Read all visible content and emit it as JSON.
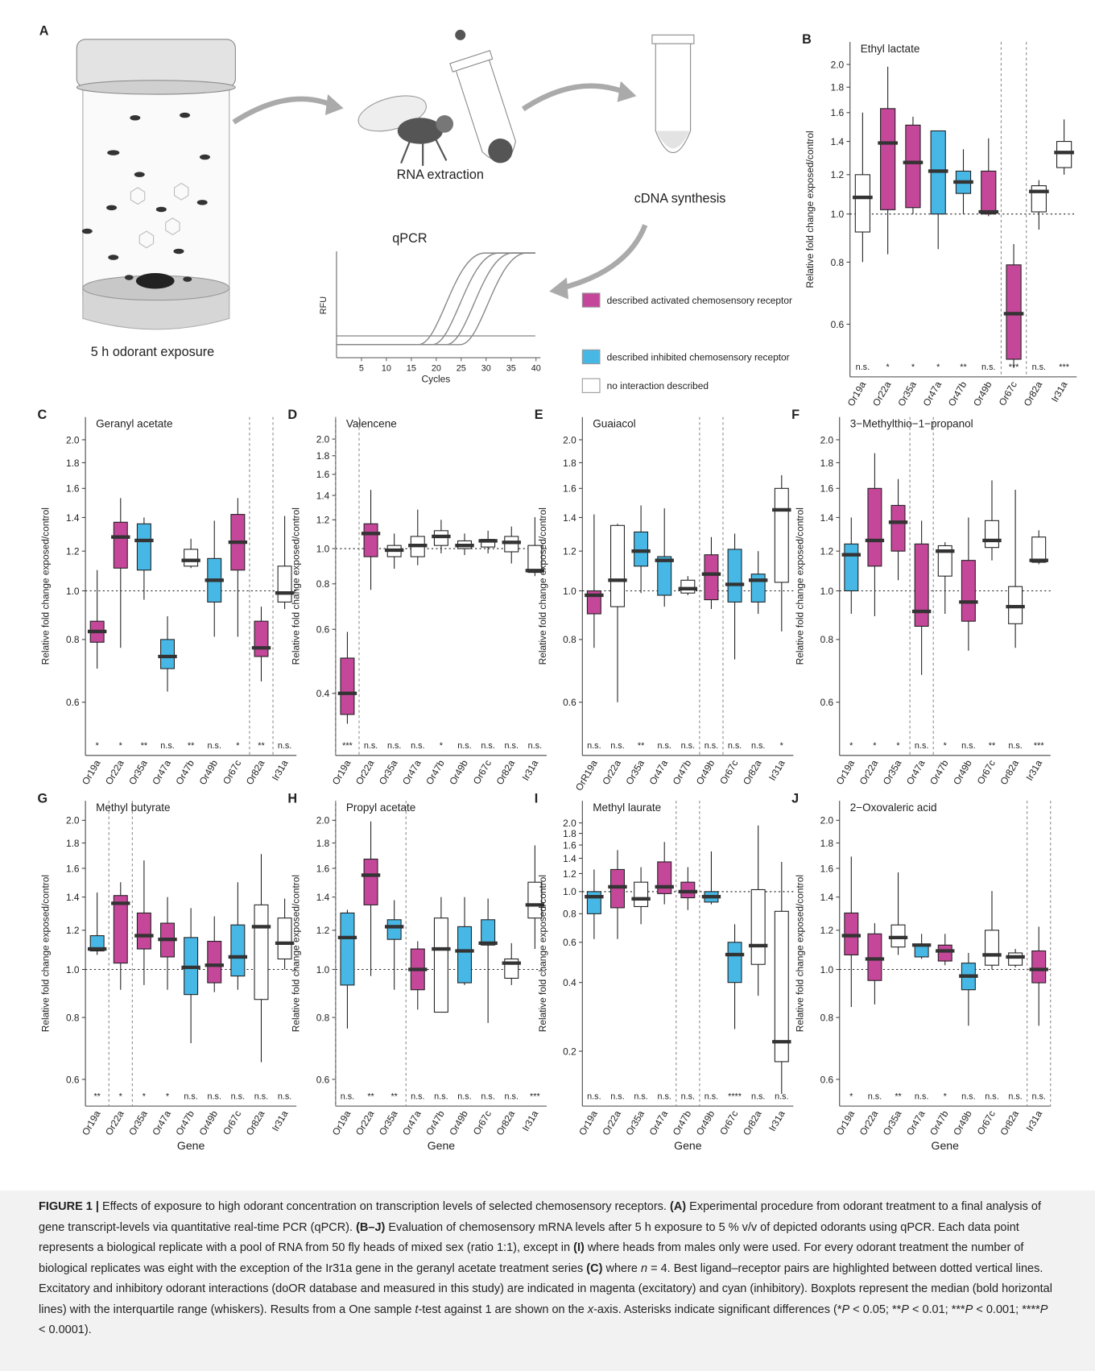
{
  "diagram": {
    "label": "A",
    "steps": [
      "5 h odorant exposure",
      "RNA extraction",
      "cDNA synthesis",
      "qPCR"
    ],
    "qpcr": {
      "ylabel": "RFU",
      "xlabel": "Cycles",
      "xticks": [
        5,
        10,
        15,
        20,
        25,
        30,
        35,
        40
      ]
    },
    "legend": [
      {
        "label": "described activated chemosensory receptor",
        "color": "#c4479a"
      },
      {
        "label": "described inhibited chemosensory receptor",
        "color": "#47b8e6"
      },
      {
        "label": "no interaction described",
        "color": "#ffffff"
      }
    ]
  },
  "chart_data": [
    {
      "type": "box",
      "panel": "B",
      "title": "Ethyl lactate",
      "ylabel": "Relative fold change exposed/control",
      "categories": [
        "Or19a",
        "Or22a",
        "Or35a",
        "Or47a",
        "Or47b",
        "Or49b",
        "Or67c",
        "Or82a",
        "Ir31a"
      ],
      "colors": [
        "#ffffff",
        "#c4479a",
        "#c4479a",
        "#47b8e6",
        "#47b8e6",
        "#c4479a",
        "#c4479a",
        "#ffffff",
        "#ffffff"
      ],
      "low": [
        0.8,
        0.83,
        1.0,
        0.85,
        1.0,
        0.99,
        0.49,
        0.93,
        1.2
      ],
      "q1": [
        0.92,
        1.02,
        1.03,
        1.0,
        1.1,
        1.0,
        0.51,
        1.01,
        1.24
      ],
      "median": [
        1.08,
        1.39,
        1.27,
        1.22,
        1.16,
        1.01,
        0.63,
        1.11,
        1.33
      ],
      "q3": [
        1.2,
        1.63,
        1.51,
        1.47,
        1.22,
        1.22,
        0.79,
        1.14,
        1.4
      ],
      "high": [
        1.6,
        1.98,
        1.57,
        1.47,
        1.35,
        1.42,
        0.87,
        1.17,
        1.55
      ],
      "significance": [
        "n.s.",
        "*",
        "*",
        "*",
        "**",
        "n.s.",
        "***",
        "n.s.",
        "***"
      ],
      "highlight": [
        "Or67c"
      ],
      "reference_line": 1,
      "log": true,
      "ylim": [
        0.47,
        2.22
      ],
      "yticks": [
        0.6,
        0.8,
        {
          "value": 1,
          "label": "1.0"
        },
        1.2,
        1.4,
        1.6,
        1.8,
        {
          "value": 2,
          "label": "2.0"
        }
      ]
    },
    {
      "type": "box",
      "panel": "C",
      "title": "Geranyl acetate",
      "ylabel": "Relative fold change exposed/control",
      "categories": [
        "Or19a",
        "Or22a",
        "Or35a",
        "Or47a",
        "Or47b",
        "Or49b",
        "Or67c",
        "Or82a",
        "Ir31a"
      ],
      "colors": [
        "#c4479a",
        "#c4479a",
        "#47b8e6",
        "#47b8e6",
        "#ffffff",
        "#47b8e6",
        "#c4479a",
        "#c4479a",
        "#ffffff"
      ],
      "low": [
        0.7,
        0.77,
        0.96,
        0.63,
        1.11,
        0.81,
        0.81,
        0.66,
        0.92
      ],
      "q1": [
        0.79,
        1.11,
        1.1,
        0.7,
        1.12,
        0.95,
        1.1,
        0.74,
        0.95
      ],
      "median": [
        0.83,
        1.28,
        1.26,
        0.74,
        1.15,
        1.05,
        1.25,
        0.77,
        0.99
      ],
      "q3": [
        0.87,
        1.37,
        1.36,
        0.8,
        1.21,
        1.16,
        1.42,
        0.87,
        1.12
      ],
      "high": [
        1.1,
        1.53,
        1.4,
        0.89,
        1.27,
        1.38,
        1.53,
        0.93,
        1.41
      ],
      "significance": [
        "*",
        "*",
        "**",
        "n.s.",
        "**",
        "n.s.",
        "*",
        "**",
        "n.s."
      ],
      "highlight": [
        "Or82a"
      ],
      "reference_line": 1,
      "log": true,
      "ylim": [
        0.47,
        2.22
      ],
      "yticks": [
        0.6,
        0.8,
        {
          "value": 1,
          "label": "1.0"
        },
        1.2,
        1.4,
        1.6,
        1.8,
        {
          "value": 2,
          "label": "2.0"
        }
      ]
    },
    {
      "type": "box",
      "panel": "D",
      "title": "Valencene",
      "ylabel": "Relative fold change exposed/control",
      "categories": [
        "Or19a",
        "Or22a",
        "Or35a",
        "Or47a",
        "Or47b",
        "Or49b",
        "Or67c",
        "Or82a",
        "Ir31a"
      ],
      "colors": [
        "#c4479a",
        "#c4479a",
        "#ffffff",
        "#ffffff",
        "#ffffff",
        "#ffffff",
        "#ffffff",
        "#ffffff",
        "#ffffff"
      ],
      "low": [
        0.33,
        0.77,
        0.88,
        0.9,
        0.97,
        0.96,
        0.97,
        0.91,
        0.84
      ],
      "q1": [
        0.35,
        0.95,
        0.95,
        0.95,
        1.02,
        1.0,
        1.01,
        0.98,
        0.86
      ],
      "median": [
        0.4,
        1.1,
        0.99,
        1.02,
        1.08,
        1.02,
        1.05,
        1.04,
        0.87
      ],
      "q3": [
        0.5,
        1.17,
        1.02,
        1.08,
        1.12,
        1.05,
        1.06,
        1.08,
        1.02
      ],
      "high": [
        0.59,
        1.45,
        1.1,
        1.28,
        1.2,
        1.1,
        1.12,
        1.15,
        1.22
      ],
      "significance": [
        "***",
        "n.s.",
        "n.s.",
        "n.s.",
        "*",
        "n.s.",
        "n.s.",
        "n.s.",
        "n.s."
      ],
      "highlight": [
        "Or19a"
      ],
      "reference_line": 1,
      "log": true,
      "ylim": [
        0.27,
        2.3
      ],
      "yticks": [
        0.4,
        0.6,
        0.8,
        {
          "value": 1,
          "label": "1.0"
        },
        1.2,
        1.4,
        1.6,
        1.8,
        {
          "value": 2,
          "label": "2.0"
        }
      ]
    },
    {
      "type": "box",
      "panel": "E",
      "title": "Guaiacol",
      "ylabel": "Relative fold change exposed/control",
      "categories": [
        "OrR19a",
        "Or22a",
        "Or35a",
        "Or47a",
        "Or47b",
        "Or49b",
        "Or67c",
        "Or82a",
        "Ir31a"
      ],
      "colors": [
        "#c4479a",
        "#ffffff",
        "#47b8e6",
        "#47b8e6",
        "#ffffff",
        "#c4479a",
        "#47b8e6",
        "#47b8e6",
        "#ffffff"
      ],
      "low": [
        0.77,
        0.6,
        0.99,
        0.93,
        0.98,
        0.92,
        0.73,
        0.9,
        0.83
      ],
      "q1": [
        0.9,
        0.93,
        1.12,
        0.98,
        0.99,
        0.96,
        0.95,
        0.95,
        1.04
      ],
      "median": [
        0.98,
        1.05,
        1.2,
        1.15,
        1.01,
        1.08,
        1.03,
        1.05,
        1.45
      ],
      "q3": [
        1.0,
        1.35,
        1.31,
        1.17,
        1.05,
        1.18,
        1.21,
        1.08,
        1.6
      ],
      "high": [
        1.42,
        1.36,
        1.48,
        1.46,
        1.07,
        1.28,
        1.3,
        1.2,
        1.7
      ],
      "significance": [
        "n.s.",
        "n.s.",
        "**",
        "n.s.",
        "n.s.",
        "n.s.",
        "n.s.",
        "n.s.",
        "*"
      ],
      "highlight": [
        "Or49b"
      ],
      "reference_line": 1,
      "log": true,
      "ylim": [
        0.47,
        2.22
      ],
      "yticks": [
        0.6,
        0.8,
        {
          "value": 1,
          "label": "1.0"
        },
        1.2,
        1.4,
        1.6,
        1.8,
        {
          "value": 2,
          "label": "2.0"
        }
      ]
    },
    {
      "type": "box",
      "panel": "F",
      "title": "3−Methylthio−1−propanol",
      "ylabel": "Relative fold change exposed/control",
      "categories": [
        "Or19a",
        "Or22a",
        "Or35a",
        "Or47a",
        "Or47b",
        "Or49b",
        "Or67c",
        "Or82a",
        "Ir31a"
      ],
      "colors": [
        "#47b8e6",
        "#c4479a",
        "#c4479a",
        "#c4479a",
        "#ffffff",
        "#c4479a",
        "#ffffff",
        "#ffffff",
        "#ffffff"
      ],
      "low": [
        0.9,
        0.89,
        1.05,
        0.68,
        0.9,
        0.76,
        1.15,
        0.77,
        1.13
      ],
      "q1": [
        1.0,
        1.12,
        1.2,
        0.85,
        1.07,
        0.87,
        1.22,
        0.86,
        1.14
      ],
      "median": [
        1.18,
        1.26,
        1.37,
        0.91,
        1.2,
        0.95,
        1.26,
        0.93,
        1.15
      ],
      "q3": [
        1.24,
        1.6,
        1.48,
        1.24,
        1.23,
        1.15,
        1.38,
        1.02,
        1.28
      ],
      "high": [
        1.4,
        1.88,
        1.67,
        1.38,
        1.25,
        1.4,
        1.66,
        1.59,
        1.32
      ],
      "significance": [
        "*",
        "*",
        "*",
        "n.s.",
        "*",
        "n.s.",
        "**",
        "n.s.",
        "***"
      ],
      "highlight": [
        "Or47a"
      ],
      "reference_line": 1,
      "log": true,
      "ylim": [
        0.47,
        2.22
      ],
      "yticks": [
        0.6,
        0.8,
        {
          "value": 1,
          "label": "1.0"
        },
        1.2,
        1.4,
        1.6,
        1.8,
        {
          "value": 2,
          "label": "2.0"
        }
      ]
    },
    {
      "type": "box",
      "panel": "G",
      "title": "Methyl butyrate",
      "ylabel": "Relative fold change exposed/control",
      "xlabel": "Gene",
      "categories": [
        "Or19a",
        "Or22a",
        "Or35a",
        "Or47a",
        "Or47b",
        "Or49b",
        "Or67c",
        "Or82a",
        "Ir31a"
      ],
      "colors": [
        "#47b8e6",
        "#c4479a",
        "#c4479a",
        "#c4479a",
        "#47b8e6",
        "#c4479a",
        "#47b8e6",
        "#ffffff",
        "#ffffff"
      ],
      "low": [
        1.07,
        0.91,
        0.93,
        0.91,
        0.71,
        0.9,
        0.91,
        0.65,
        1.0
      ],
      "q1": [
        1.09,
        1.03,
        1.1,
        1.06,
        0.89,
        0.94,
        0.97,
        0.87,
        1.05
      ],
      "median": [
        1.1,
        1.36,
        1.17,
        1.15,
        1.01,
        1.02,
        1.06,
        1.22,
        1.13
      ],
      "q3": [
        1.17,
        1.41,
        1.3,
        1.24,
        1.16,
        1.14,
        1.23,
        1.35,
        1.27
      ],
      "high": [
        1.43,
        1.5,
        1.66,
        1.4,
        1.33,
        1.28,
        1.5,
        1.71,
        1.39
      ],
      "significance": [
        "**",
        "*",
        "*",
        "*",
        "n.s.",
        "n.s.",
        "n.s.",
        "n.s.",
        "n.s."
      ],
      "highlight": [
        "Or22a"
      ],
      "reference_line": 1,
      "log": true,
      "ylim": [
        0.53,
        2.19
      ],
      "yticks": [
        0.6,
        0.8,
        {
          "value": 1,
          "label": "1.0"
        },
        1.2,
        1.4,
        1.6,
        1.8,
        {
          "value": 2,
          "label": "2.0"
        }
      ]
    },
    {
      "type": "box",
      "panel": "H",
      "title": "Propyl acetate",
      "ylabel": "Relative fold change exposed/control",
      "xlabel": "Gene",
      "categories": [
        "Or19a",
        "Or22a",
        "Or35a",
        "Or47a",
        "Or47b",
        "Or49b",
        "Or67c",
        "Or82a",
        "Ir31a"
      ],
      "colors": [
        "#47b8e6",
        "#c4479a",
        "#47b8e6",
        "#c4479a",
        "#ffffff",
        "#47b8e6",
        "#47b8e6",
        "#ffffff",
        "#ffffff"
      ],
      "low": [
        0.76,
        0.97,
        0.91,
        0.83,
        0.82,
        0.93,
        0.78,
        0.93,
        1.1
      ],
      "q1": [
        0.93,
        1.35,
        1.15,
        0.91,
        0.82,
        0.94,
        1.12,
        0.96,
        1.27
      ],
      "median": [
        1.16,
        1.55,
        1.22,
        1.0,
        1.1,
        1.09,
        1.13,
        1.03,
        1.35
      ],
      "q3": [
        1.3,
        1.67,
        1.26,
        1.1,
        1.27,
        1.22,
        1.26,
        1.05,
        1.5
      ],
      "high": [
        1.32,
        1.99,
        1.38,
        1.14,
        1.4,
        1.4,
        1.39,
        1.13,
        1.78
      ],
      "significance": [
        "n.s.",
        "**",
        "**",
        "n.s.",
        "n.s.",
        "n.s.",
        "n.s.",
        "n.s.",
        "***"
      ],
      "highlight": [
        "Or19a",
        "Or22a",
        "Or35a"
      ],
      "reference_line": 1,
      "log": true,
      "ylim": [
        0.53,
        2.19
      ],
      "yticks": [
        0.6,
        0.8,
        {
          "value": 1,
          "label": "1.0"
        },
        1.2,
        1.4,
        1.6,
        1.8,
        {
          "value": 2,
          "label": "2.0"
        }
      ]
    },
    {
      "type": "box",
      "panel": "I",
      "title": "Methyl laurate",
      "ylabel": "Relative fold change exposed/control",
      "xlabel": "Gene",
      "categories": [
        "Or19a",
        "Or22a",
        "Or35a",
        "Or47a",
        "Or47b",
        "Or49b",
        "Or67c",
        "Or82a",
        "Ir31a"
      ],
      "colors": [
        "#47b8e6",
        "#c4479a",
        "#ffffff",
        "#c4479a",
        "#c4479a",
        "#47b8e6",
        "#47b8e6",
        "#ffffff",
        "#ffffff"
      ],
      "low": [
        0.62,
        0.62,
        0.72,
        0.88,
        0.83,
        0.88,
        0.25,
        0.35,
        0.13
      ],
      "q1": [
        0.8,
        0.85,
        0.86,
        0.98,
        0.94,
        0.9,
        0.4,
        0.48,
        0.18
      ],
      "median": [
        0.95,
        1.05,
        0.93,
        1.05,
        1.0,
        0.95,
        0.53,
        0.58,
        0.22
      ],
      "q3": [
        1.0,
        1.25,
        1.1,
        1.35,
        1.1,
        1.0,
        0.6,
        1.02,
        0.82
      ],
      "high": [
        1.25,
        1.52,
        1.28,
        1.65,
        1.28,
        1.5,
        0.72,
        1.95,
        1.35
      ],
      "significance": [
        "n.s.",
        "n.s.",
        "n.s.",
        "n.s.",
        "n.s.",
        "n.s.",
        "****",
        "n.s.",
        "n.s."
      ],
      "highlight": [
        "Or47b"
      ],
      "reference_line": 1,
      "log": true,
      "ylim": [
        0.115,
        2.5
      ],
      "yticks": [
        0.2,
        0.4,
        0.6,
        0.8,
        {
          "value": 1,
          "label": "1.0"
        },
        1.2,
        1.4,
        1.6,
        1.8,
        {
          "value": 2,
          "label": "2.0"
        }
      ]
    },
    {
      "type": "box",
      "panel": "J",
      "title": "2−Oxovaleric acid",
      "ylabel": "Relative fold change exposed/control",
      "xlabel": "Gene",
      "categories": [
        "Or19a",
        "Or22a",
        "Or35a",
        "Or47a",
        "Or47b",
        "Or49b",
        "Or67c",
        "Or82a",
        "Ir31a"
      ],
      "colors": [
        "#c4479a",
        "#c4479a",
        "#ffffff",
        "#47b8e6",
        "#c4479a",
        "#47b8e6",
        "#ffffff",
        "#ffffff",
        "#c4479a"
      ],
      "low": [
        0.84,
        0.85,
        1.07,
        1.05,
        1.02,
        0.77,
        1.0,
        1.01,
        0.77
      ],
      "q1": [
        1.07,
        0.95,
        1.11,
        1.06,
        1.04,
        0.91,
        1.02,
        1.02,
        0.94
      ],
      "median": [
        1.17,
        1.05,
        1.16,
        1.12,
        1.09,
        0.97,
        1.07,
        1.06,
        1.0
      ],
      "q3": [
        1.3,
        1.18,
        1.23,
        1.12,
        1.12,
        1.03,
        1.2,
        1.08,
        1.09
      ],
      "high": [
        1.69,
        1.24,
        1.57,
        1.18,
        1.18,
        1.08,
        1.44,
        1.1,
        1.22
      ],
      "significance": [
        "*",
        "n.s.",
        "**",
        "n.s.",
        "*",
        "n.s.",
        "n.s.",
        "n.s.",
        "n.s."
      ],
      "highlight": [
        "Ir31a"
      ],
      "reference_line": 1,
      "log": true,
      "ylim": [
        0.53,
        2.19
      ],
      "yticks": [
        0.6,
        0.8,
        {
          "value": 1,
          "label": "1.0"
        },
        1.2,
        1.4,
        1.6,
        1.8,
        {
          "value": 2,
          "label": "2.0"
        }
      ]
    }
  ],
  "caption": {
    "parts": [
      {
        "text": "FIGURE 1 |",
        "style": "bold"
      },
      {
        "text": " Effects of exposure to high odorant concentration on transcription levels of selected chemosensory receptors. "
      },
      {
        "text": "(A)",
        "style": "bold"
      },
      {
        "text": " Experimental procedure from odorant treatment to a final analysis of gene transcript-levels via quantitative real-time PCR (qPCR). "
      },
      {
        "text": "(B–J)",
        "style": "bold"
      },
      {
        "text": " Evaluation of chemosensory mRNA levels after 5 h exposure to 5 % v/v of depicted odorants using qPCR. Each data point represents a biological replicate with a pool of RNA from 50 fly heads of mixed sex (ratio 1:1), except in "
      },
      {
        "text": "(I)",
        "style": "bold"
      },
      {
        "text": " where heads from males only were used. For every odorant treatment the number of biological replicates was eight with the exception of the Ir31a gene in the geranyl acetate treatment series "
      },
      {
        "text": "(C)",
        "style": "bold"
      },
      {
        "text": " where "
      },
      {
        "text": "n",
        "style": "italic"
      },
      {
        "text": " = 4. Best ligand–receptor pairs are highlighted between dotted vertical lines. Excitatory and inhibitory odorant interactions (doOR database and measured in this study) are indicated in magenta (excitatory) and cyan (inhibitory). Boxplots represent the median (bold horizontal lines) with the interquartile range (whiskers). Results from a One sample "
      },
      {
        "text": "t",
        "style": "italic"
      },
      {
        "text": "-test against 1 are shown on the "
      },
      {
        "text": "x",
        "style": "italic"
      },
      {
        "text": "-axis. Asterisks indicate significant differences (*"
      },
      {
        "text": "P",
        "style": "italic"
      },
      {
        "text": " < 0.05; **"
      },
      {
        "text": "P",
        "style": "italic"
      },
      {
        "text": " < 0.01; ***"
      },
      {
        "text": "P",
        "style": "italic"
      },
      {
        "text": " < 0.001; ****"
      },
      {
        "text": "P",
        "style": "italic"
      },
      {
        "text": " < 0.0001)."
      }
    ]
  }
}
